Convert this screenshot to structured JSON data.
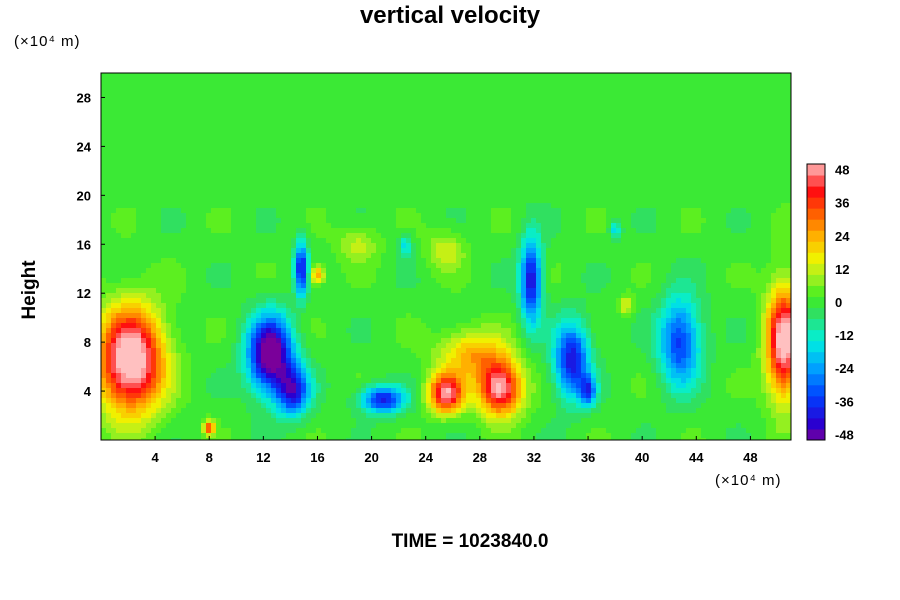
{
  "chart_data": {
    "type": "heatmap",
    "title": "vertical velocity",
    "ylabel": "Height",
    "xlabel": "",
    "x_unit_label": "(×10⁴ m)",
    "y_unit_label": "(×10⁴ m)",
    "footer": "TIME = 1023840.0",
    "xlim": [
      0,
      51
    ],
    "ylim": [
      0,
      30
    ],
    "x_ticks": [
      4,
      8,
      12,
      16,
      20,
      24,
      28,
      32,
      36,
      40,
      44,
      48
    ],
    "y_ticks": [
      4,
      8,
      12,
      16,
      20,
      24,
      28
    ],
    "colorbar": {
      "min": -50,
      "max": 50,
      "ticks": [
        48,
        36,
        24,
        12,
        0,
        -12,
        -24,
        -36,
        -48
      ],
      "stops": [
        {
          "v": -50,
          "color": "#7a009a"
        },
        {
          "v": -44,
          "color": "#2a00d0"
        },
        {
          "v": -34,
          "color": "#0040ff"
        },
        {
          "v": -24,
          "color": "#00a0ff"
        },
        {
          "v": -14,
          "color": "#00f0e0"
        },
        {
          "v": -4,
          "color": "#30e060"
        },
        {
          "v": 2,
          "color": "#40ee20"
        },
        {
          "v": 10,
          "color": "#b0f020"
        },
        {
          "v": 16,
          "color": "#f0f000"
        },
        {
          "v": 24,
          "color": "#ffb000"
        },
        {
          "v": 32,
          "color": "#ff6000"
        },
        {
          "v": 40,
          "color": "#ff1010"
        },
        {
          "v": 46,
          "color": "#ff7070"
        },
        {
          "v": 50,
          "color": "#ffc0c0"
        }
      ]
    },
    "features": [
      {
        "x": 2.2,
        "y": 6.5,
        "sx": 2.4,
        "sy": 4.2,
        "amp": 60
      },
      {
        "x": 50.5,
        "y": 8.0,
        "sx": 1.3,
        "sy": 4.5,
        "amp": 55
      },
      {
        "x": 8.0,
        "y": 1.0,
        "sx": 0.4,
        "sy": 0.6,
        "amp": 35
      },
      {
        "x": 12.5,
        "y": 7.0,
        "sx": 1.6,
        "sy": 3.0,
        "amp": -60
      },
      {
        "x": 14.2,
        "y": 4.0,
        "sx": 1.2,
        "sy": 2.0,
        "amp": -40
      },
      {
        "x": 14.8,
        "y": 14.0,
        "sx": 0.5,
        "sy": 2.2,
        "amp": -40
      },
      {
        "x": 16.0,
        "y": 13.5,
        "sx": 0.5,
        "sy": 0.8,
        "amp": 28
      },
      {
        "x": 20.8,
        "y": 3.3,
        "sx": 1.6,
        "sy": 1.1,
        "amp": -40
      },
      {
        "x": 25.5,
        "y": 3.8,
        "sx": 1.3,
        "sy": 1.6,
        "amp": 48
      },
      {
        "x": 29.5,
        "y": 4.2,
        "sx": 1.6,
        "sy": 2.2,
        "amp": 52
      },
      {
        "x": 27.5,
        "y": 7.0,
        "sx": 2.5,
        "sy": 2.0,
        "amp": 24
      },
      {
        "x": 31.8,
        "y": 13.0,
        "sx": 0.8,
        "sy": 3.5,
        "amp": -42
      },
      {
        "x": 34.8,
        "y": 6.5,
        "sx": 1.3,
        "sy": 3.0,
        "amp": -42
      },
      {
        "x": 36.0,
        "y": 4.0,
        "sx": 0.6,
        "sy": 1.2,
        "amp": -30
      },
      {
        "x": 42.8,
        "y": 8.0,
        "sx": 1.5,
        "sy": 3.5,
        "amp": -36
      },
      {
        "x": 38.8,
        "y": 11.0,
        "sx": 0.5,
        "sy": 0.8,
        "amp": 16
      },
      {
        "x": 19.0,
        "y": 16.0,
        "sx": 1.5,
        "sy": 1.5,
        "amp": 12
      },
      {
        "x": 25.5,
        "y": 15.5,
        "sx": 1.4,
        "sy": 1.6,
        "amp": 13
      },
      {
        "x": 38.0,
        "y": 17.2,
        "sx": 0.4,
        "sy": 0.7,
        "amp": -18
      },
      {
        "x": 22.5,
        "y": 15.8,
        "sx": 0.5,
        "sy": 1.0,
        "amp": -16
      }
    ]
  }
}
